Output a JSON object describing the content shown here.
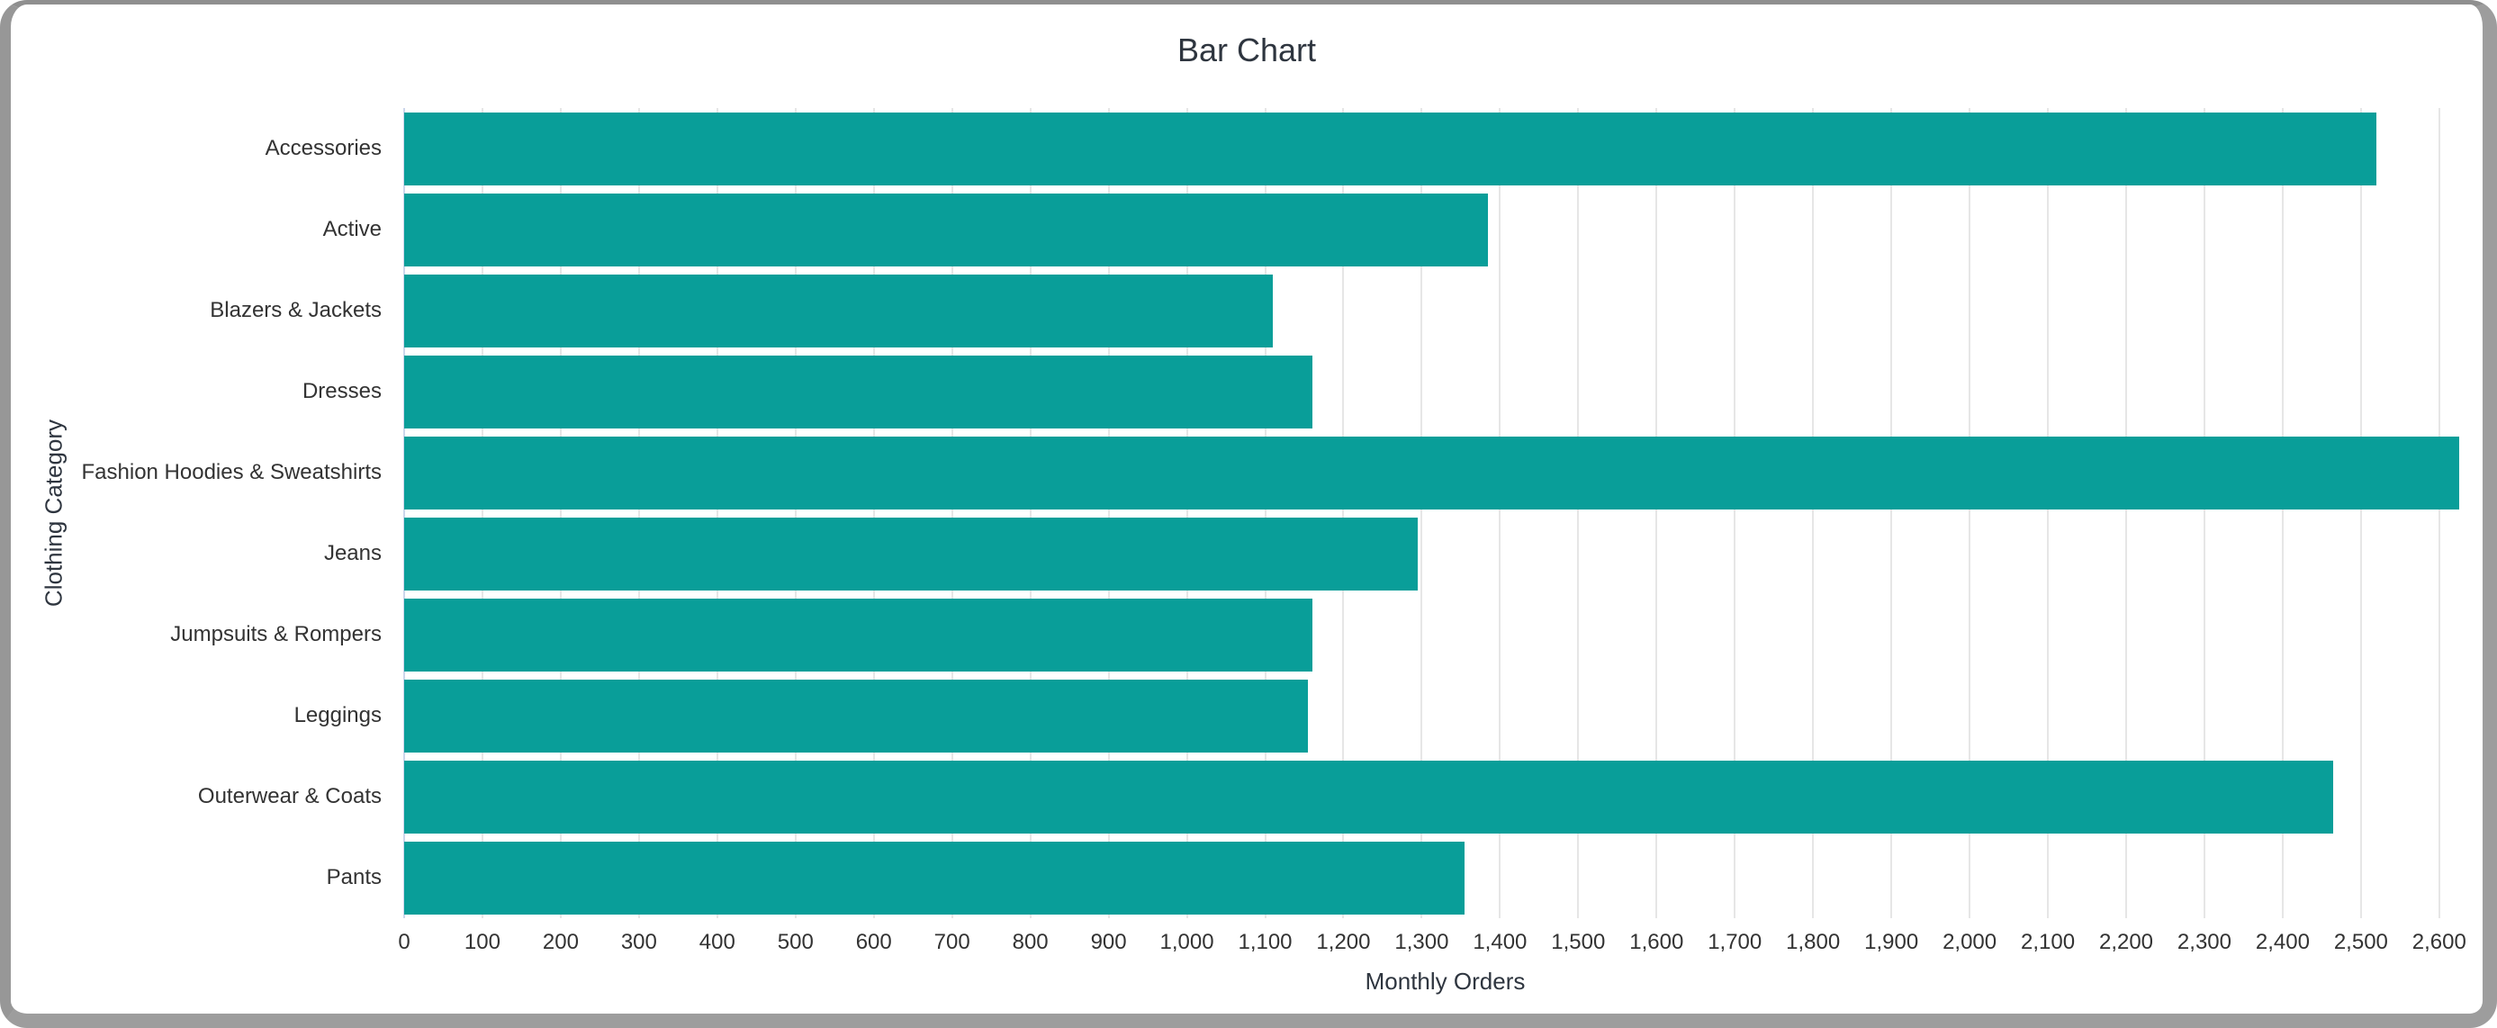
{
  "chart": {
    "title": "Bar Chart",
    "x_axis_title": "Monthly Orders",
    "y_axis_title": "Clothing Category"
  },
  "chart_data": {
    "type": "bar",
    "orientation": "horizontal",
    "title": "Bar Chart",
    "xlabel": "Monthly Orders",
    "ylabel": "Clothing Category",
    "categories": [
      "Accessories",
      "Active",
      "Blazers & Jackets",
      "Dresses",
      "Fashion Hoodies & Sweatshirts",
      "Jeans",
      "Jumpsuits & Rompers",
      "Leggings",
      "Outerwear & Coats",
      "Pants"
    ],
    "values": [
      2520,
      1385,
      1110,
      1160,
      2625,
      1295,
      1160,
      1155,
      2465,
      1355
    ],
    "xlim": [
      0,
      2660
    ],
    "tick_interval": 100,
    "tick_max": 2600,
    "grid": true,
    "legend": "none",
    "bar_color": "#099e99",
    "grid_color": "#e6e6e6",
    "axis_line_color": "#ccd6eb",
    "label_color": "#333333",
    "title_color": "#2e353f"
  }
}
